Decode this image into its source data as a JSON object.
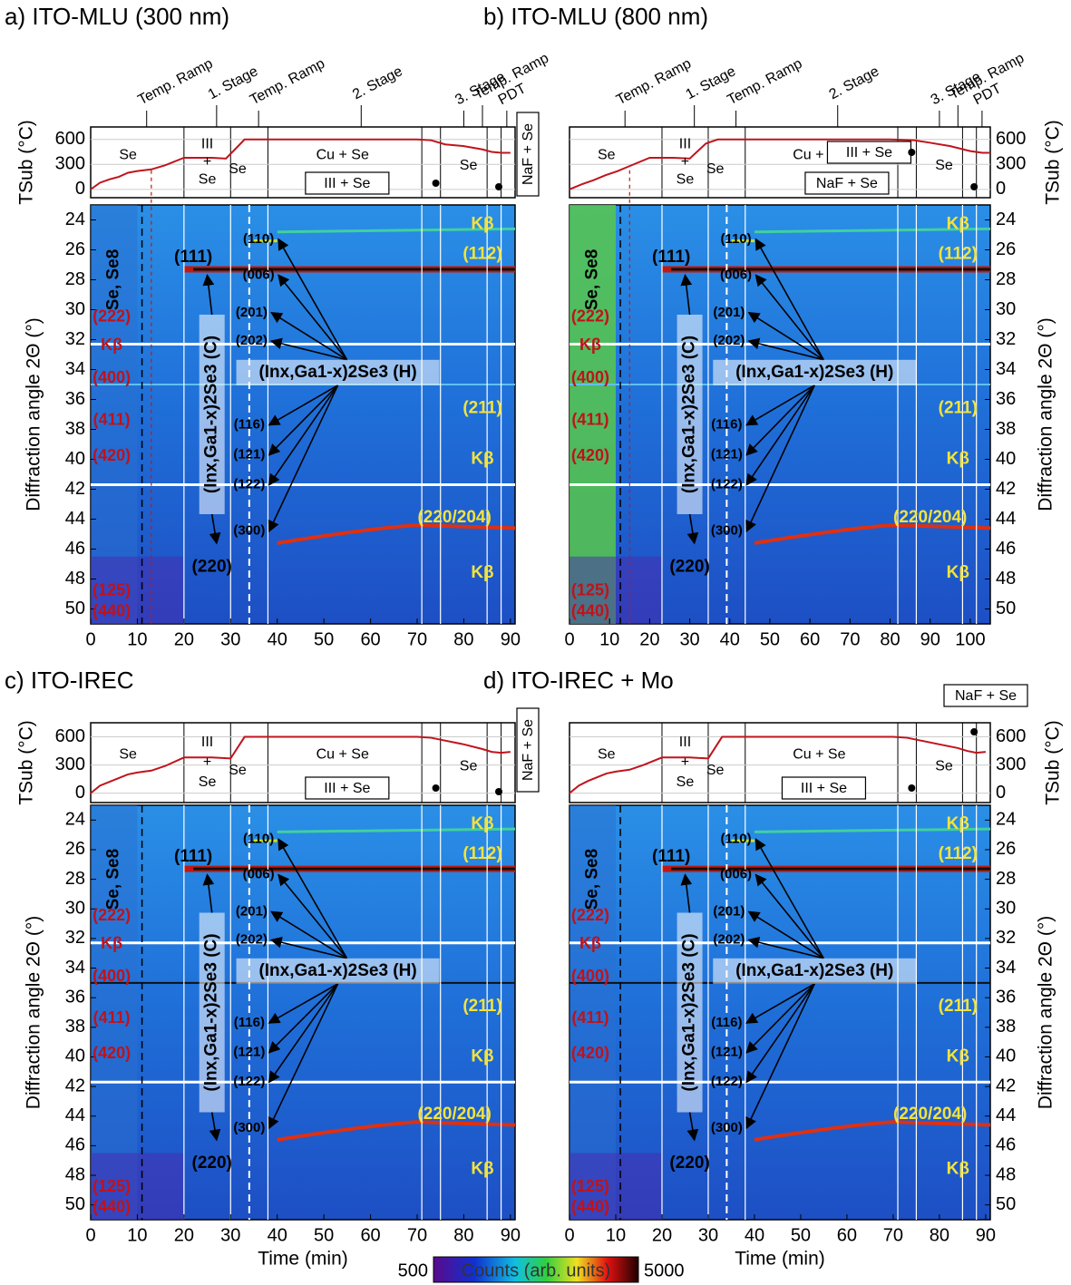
{
  "panels": [
    {
      "title": "a) ITO-MLU (300 nm)",
      "xlim": [
        0,
        91
      ],
      "xticks": [
        0,
        10,
        20,
        30,
        40,
        50,
        60,
        70,
        80,
        90
      ],
      "stage_labels": true,
      "axis_side": "left",
      "temperature": {
        "x": [
          0,
          2,
          4,
          6,
          8,
          10,
          13,
          16,
          20,
          26,
          29,
          33,
          40,
          70,
          73,
          76,
          80,
          84,
          86,
          88,
          90
        ],
        "values": [
          0,
          80,
          120,
          150,
          200,
          220,
          240,
          290,
          380,
          380,
          370,
          600,
          600,
          600,
          590,
          540,
          520,
          480,
          450,
          440,
          440
        ]
      }
    },
    {
      "title": "b) ITO-MLU (800 nm)",
      "xlim": [
        0,
        105
      ],
      "xticks": [
        0,
        10,
        20,
        30,
        40,
        50,
        60,
        70,
        80,
        90,
        100
      ],
      "stage_labels": true,
      "axis_side": "right",
      "temperature": {
        "x": [
          0,
          3,
          6,
          9,
          12,
          15,
          20,
          26,
          30,
          34,
          37,
          45,
          80,
          86,
          90,
          95,
          100,
          103,
          105
        ],
        "values": [
          0,
          60,
          110,
          170,
          220,
          280,
          380,
          380,
          370,
          550,
          600,
          600,
          600,
          590,
          560,
          520,
          460,
          440,
          440
        ]
      }
    },
    {
      "title": "c) ITO-IREC",
      "xlim": [
        0,
        91
      ],
      "xticks": [
        0,
        10,
        20,
        30,
        40,
        50,
        60,
        70,
        80,
        90
      ],
      "stage_labels": false,
      "axis_side": "left",
      "temperature": {
        "x": [
          0,
          2,
          4,
          6,
          8,
          10,
          13,
          16,
          20,
          26,
          30,
          33,
          40,
          70,
          73,
          76,
          80,
          84,
          86,
          88,
          90
        ],
        "values": [
          0,
          80,
          120,
          160,
          200,
          220,
          240,
          290,
          380,
          380,
          370,
          600,
          600,
          600,
          590,
          560,
          520,
          470,
          440,
          430,
          440
        ]
      }
    },
    {
      "title": "d) ITO-IREC + Mo",
      "xlim": [
        0,
        91
      ],
      "xticks": [
        0,
        10,
        20,
        30,
        40,
        50,
        60,
        70,
        80,
        90
      ],
      "stage_labels": false,
      "axis_side": "right",
      "temperature": {
        "x": [
          0,
          2,
          4,
          6,
          8,
          10,
          13,
          16,
          20,
          26,
          30,
          33,
          40,
          70,
          73,
          76,
          80,
          84,
          86,
          88,
          90
        ],
        "values": [
          0,
          80,
          130,
          170,
          210,
          230,
          250,
          300,
          380,
          380,
          370,
          600,
          600,
          600,
          590,
          560,
          520,
          480,
          450,
          430,
          440
        ]
      }
    }
  ],
  "shared": {
    "tlim": [
      -100,
      750
    ],
    "tticks": [
      0,
      300,
      600
    ],
    "ylim": [
      23,
      51
    ],
    "yticks": [
      24,
      26,
      28,
      30,
      32,
      34,
      36,
      38,
      40,
      42,
      44,
      46,
      48,
      50
    ],
    "t_axis_label": "TSub (°C)",
    "y_axis_label": "Diffraction angle 2Θ (°)",
    "x_axis_label": "Time (min)",
    "stages": [
      "Temp. Ramp",
      "1. Stage",
      "Temp. Ramp",
      "2. Stage",
      "3. Stage",
      "Temp. Ramp",
      "PDT"
    ],
    "phases": [
      "Se",
      "III",
      "+",
      "Se",
      "Se",
      "Cu + Se",
      "Se"
    ],
    "boxes": [
      "III + Se",
      "NaF + Se"
    ],
    "hex_peaks": [
      "(110)",
      "(006)",
      "(201)",
      "(202)",
      "(116)",
      "(121)",
      "(122)",
      "(300)"
    ],
    "cubic_peaks": [
      "(111)",
      "(220)"
    ],
    "hex_label": "(Inx,Ga1-x)2Se3 (H)",
    "cubic_label": "(Inx,Ga1-x)2Se3 (C)",
    "se_label": "Se, Se8",
    "red_labels": [
      "(222)",
      "Kβ",
      "(400)",
      "(411)",
      "(420)",
      "(125)",
      "(440)"
    ],
    "yellow_labels": [
      "Kβ",
      "(112)",
      "(211)",
      "Kβ",
      "(220/204)",
      "Kβ"
    ],
    "colorbar": {
      "min": 500,
      "max": 5000,
      "label": "Counts (arb. units)"
    }
  }
}
